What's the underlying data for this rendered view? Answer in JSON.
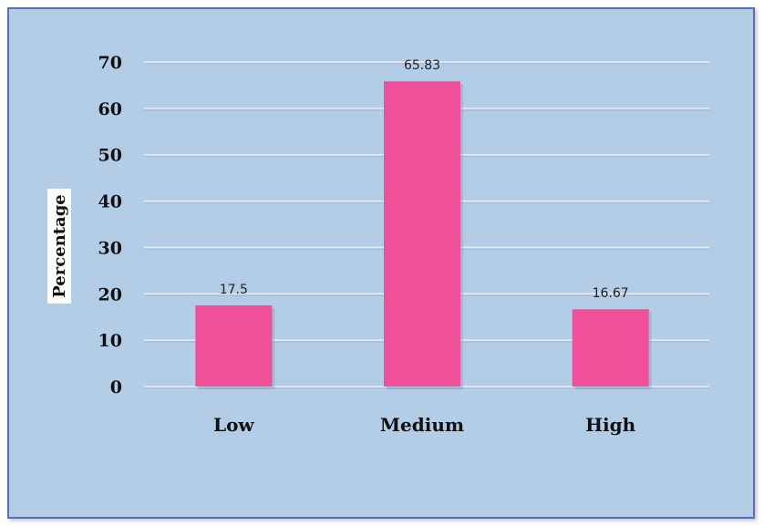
{
  "chart_data": {
    "type": "bar",
    "categories": [
      "Low",
      "Medium",
      "High"
    ],
    "values": [
      17.5,
      65.83,
      16.67
    ],
    "data_labels": [
      "17.5",
      "65.83",
      "16.67"
    ],
    "title": "",
    "xlabel": "",
    "ylabel": "Percentage",
    "ylim": [
      0,
      70
    ],
    "yticks": [
      "0",
      "10",
      "20",
      "30",
      "40",
      "50",
      "60",
      "70"
    ],
    "grid": true,
    "legend": "none"
  },
  "colors": {
    "bar": "#f0509a",
    "background": "#b4cde6",
    "gridline": "#e8eef6",
    "border": "#5b6fb0"
  }
}
